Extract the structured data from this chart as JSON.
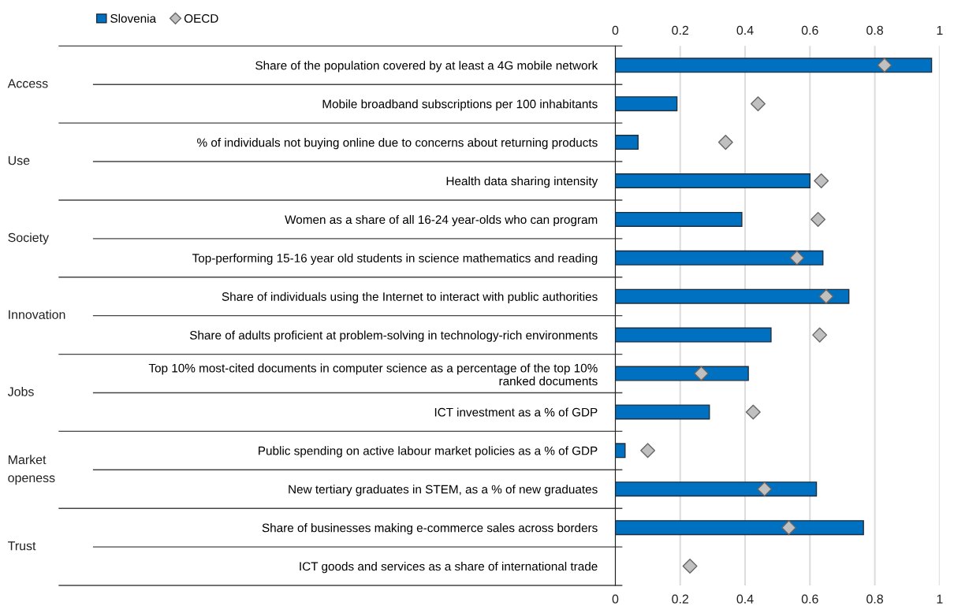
{
  "chart_data": {
    "type": "bar",
    "orientation": "horizontal",
    "categories": [
      "Share of the population covered by at least a 4G mobile network",
      "Mobile broadband subscriptions per 100 inhabitants",
      "% of individuals not buying online due to concerns about returning products",
      "Health data sharing intensity",
      "Women as a share of all 16-24 year-olds who can program",
      "Top-performing 15-16 year old students in science mathematics and reading",
      "Share of individuals using the Internet to interact with public authorities",
      "Share of adults proficient at problem-solving in technology-rich environments",
      "Top 10% most-cited documents in computer science as a percentage of the top 10%\nranked documents",
      "ICT investment as a % of GDP",
      "Public spending on active labour market policies as a % of GDP",
      "New tertiary graduates in STEM, as a % of new graduates",
      "Share of businesses making e-commerce sales across borders",
      "ICT goods and services as a share of international trade"
    ],
    "series": [
      {
        "name": "Slovenia",
        "color": "#0070c0",
        "values": [
          0.975,
          0.19,
          0.07,
          0.6,
          0.39,
          0.64,
          0.72,
          0.48,
          0.41,
          0.29,
          0.03,
          0.62,
          0.765,
          null
        ]
      },
      {
        "name": "OECD",
        "type": "scatter",
        "marker": "diamond",
        "color": "#c0c0c0",
        "values": [
          0.83,
          0.44,
          0.34,
          0.635,
          0.625,
          0.56,
          0.65,
          0.63,
          0.265,
          0.425,
          0.1,
          0.46,
          0.535,
          0.23
        ]
      }
    ],
    "annotations": [
      "Access",
      "Use",
      "Society",
      "Innovation",
      "Jobs",
      "Market\nopeness",
      "Trust"
    ],
    "xlim": [
      0,
      1
    ],
    "xticks": [
      0,
      0.2,
      0.4,
      0.6,
      0.8,
      1
    ],
    "x2lim": [
      0,
      1
    ],
    "x2ticks": [
      0,
      0.2,
      0.4,
      0.6,
      0.8,
      1
    ],
    "grid": "x",
    "legend": "top left"
  }
}
